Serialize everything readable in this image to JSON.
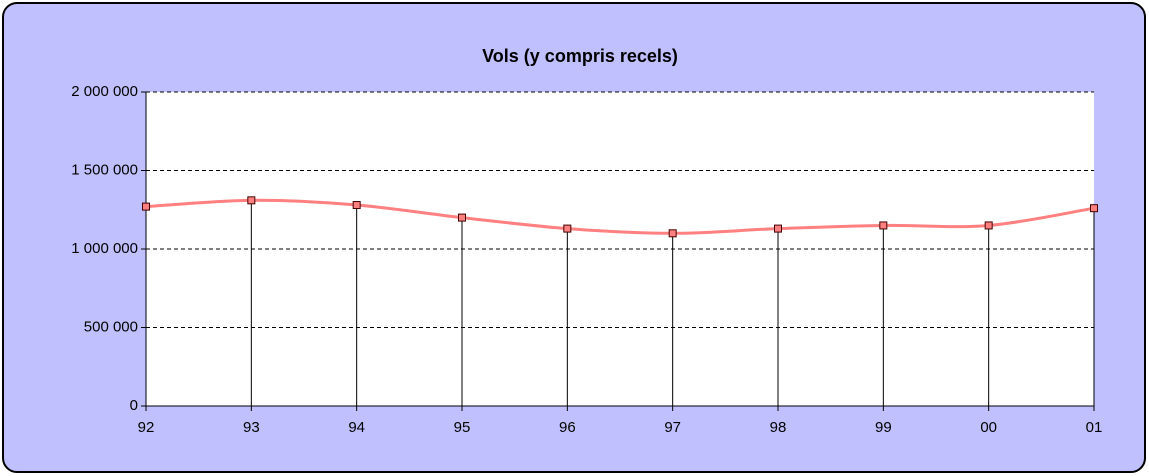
{
  "chart_data": {
    "type": "line",
    "title": "Vols (y compris recels)",
    "categories": [
      "92",
      "93",
      "94",
      "95",
      "96",
      "97",
      "98",
      "99",
      "00",
      "01"
    ],
    "series": [
      {
        "name": "Vols",
        "color": "#ff8080",
        "values": [
          1270000,
          1310000,
          1280000,
          1200000,
          1130000,
          1100000,
          1130000,
          1150000,
          1150000,
          1260000
        ]
      }
    ],
    "ylim": [
      0,
      2000000
    ],
    "yticks": [
      0,
      {
        "value": 500000,
        "label": "500 000"
      },
      {
        "value": 1000000,
        "label": "1 000 000"
      },
      {
        "value": 1500000,
        "label": "1 500 000"
      },
      {
        "value": 2000000,
        "label": "2 000 000"
      }
    ],
    "grid": true,
    "smooth": true,
    "drop_lines": true
  }
}
